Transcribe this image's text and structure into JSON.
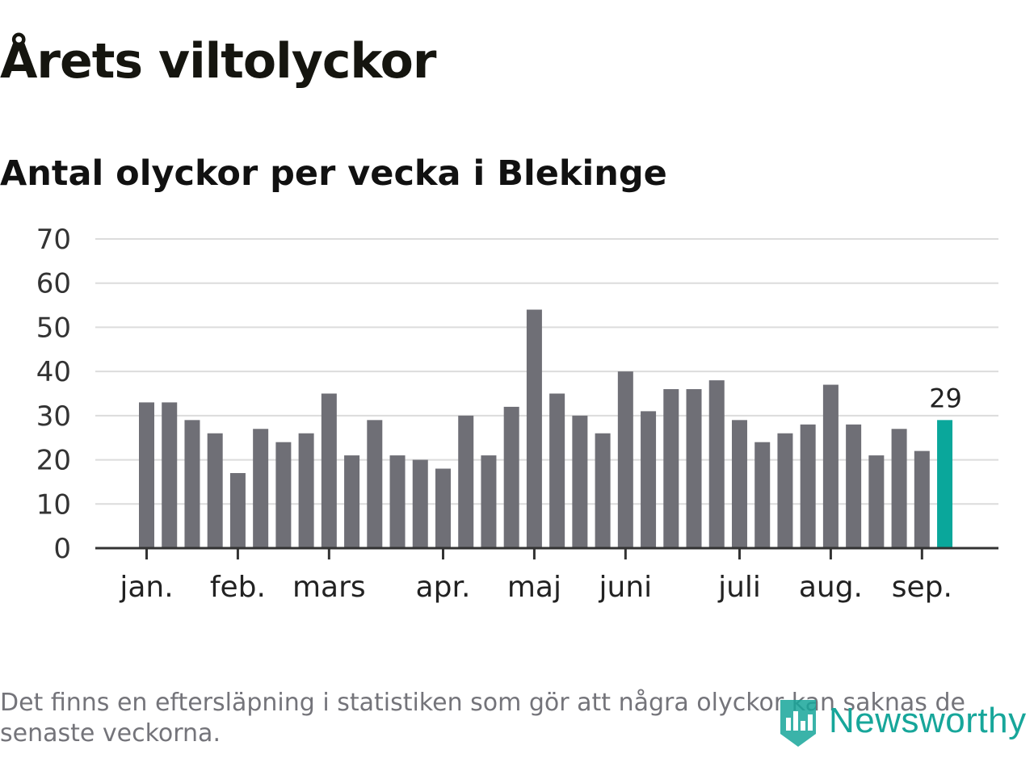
{
  "title": "Årets viltolyckor",
  "subtitle": "Antal olyckor per vecka i Blekinge",
  "footnote": "Det finns en eftersläpning i statistiken som gör att några olyckor kan saknas de senaste veckorna.",
  "logo": {
    "text": "Newsworthy",
    "icon": "newsworthy-logo-icon"
  },
  "colors": {
    "bar": "#6f6f76",
    "highlight": "#0aa79b",
    "grid": "#dcdcdc",
    "axis": "#333333",
    "logo": "#17a69a"
  },
  "chart_data": {
    "type": "bar",
    "title": "Antal olyckor per vecka i Blekinge",
    "xlabel": "",
    "ylabel": "",
    "ylim": [
      0,
      70
    ],
    "yticks": [
      0,
      10,
      20,
      30,
      40,
      50,
      60,
      70
    ],
    "grid": true,
    "month_ticks": [
      {
        "label": "jan.",
        "week_index": 0
      },
      {
        "label": "feb.",
        "week_index": 4
      },
      {
        "label": "mars",
        "week_index": 8
      },
      {
        "label": "apr.",
        "week_index": 13
      },
      {
        "label": "maj",
        "week_index": 17
      },
      {
        "label": "juni",
        "week_index": 21
      },
      {
        "label": "juli",
        "week_index": 26
      },
      {
        "label": "aug.",
        "week_index": 30
      },
      {
        "label": "sep.",
        "week_index": 34
      }
    ],
    "values": [
      33,
      33,
      29,
      26,
      17,
      27,
      24,
      26,
      35,
      21,
      29,
      21,
      20,
      18,
      30,
      21,
      32,
      54,
      35,
      30,
      26,
      40,
      31,
      36,
      36,
      38,
      29,
      24,
      26,
      28,
      37,
      28,
      21,
      27,
      22,
      29
    ],
    "highlight_index": 35,
    "highlight_label": "29"
  }
}
